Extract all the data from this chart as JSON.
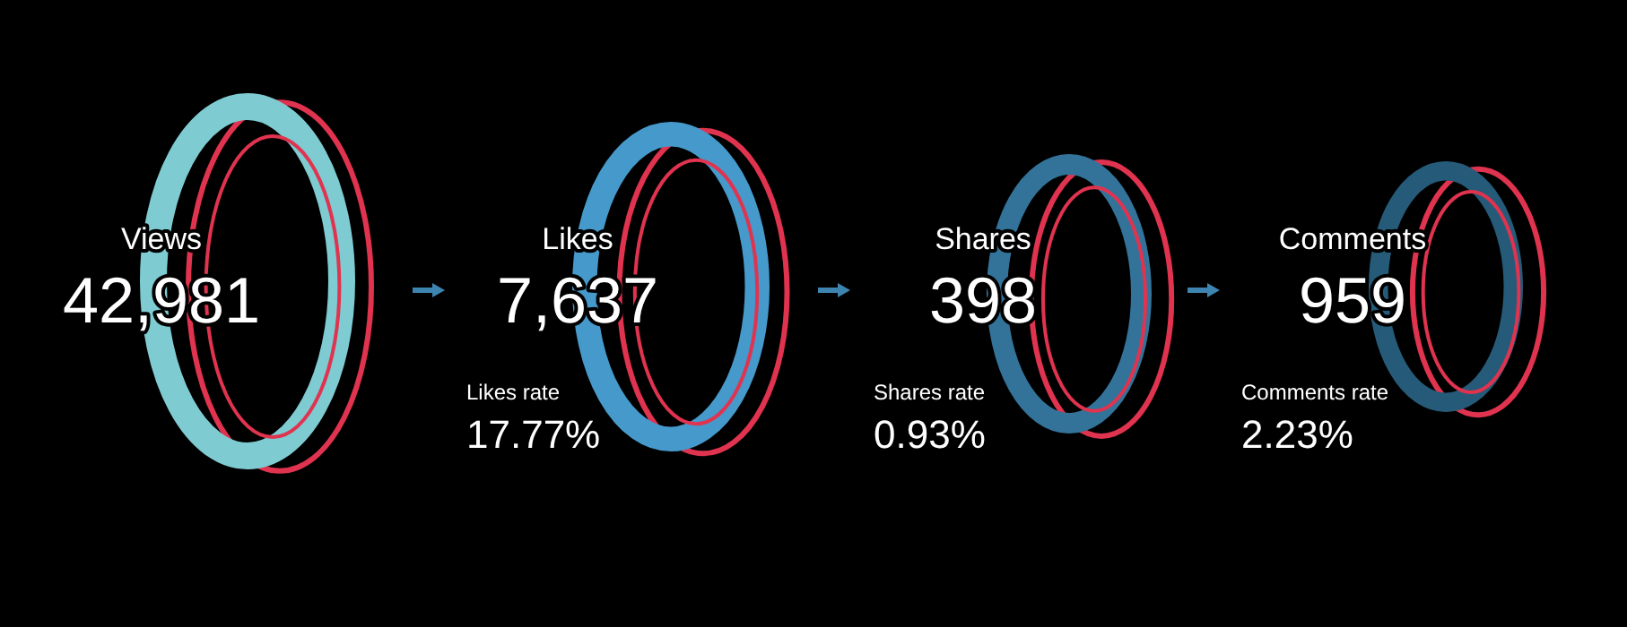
{
  "chart_data": {
    "type": "other",
    "categories": [
      "Views",
      "Likes",
      "Shares",
      "Comments"
    ],
    "colors": [
      "#7ecbd1",
      "#4699cb",
      "#33739a",
      "#255a78"
    ],
    "series": [
      {
        "color": "#e0334f",
        "values": [
          42981,
          7637,
          398,
          959
        ],
        "value_labels": [
          "42,981",
          "7,637",
          "398",
          "959"
        ]
      },
      {
        "color": "#e0334f",
        "values": [
          null,
          17.77,
          0.93,
          2.23
        ],
        "value_labels": [
          null,
          "17.77%",
          "0.93%",
          "2.23%"
        ]
      }
    ],
    "annotations": [
      "Likes rate",
      "Shares rate",
      "Comments rate"
    ]
  }
}
